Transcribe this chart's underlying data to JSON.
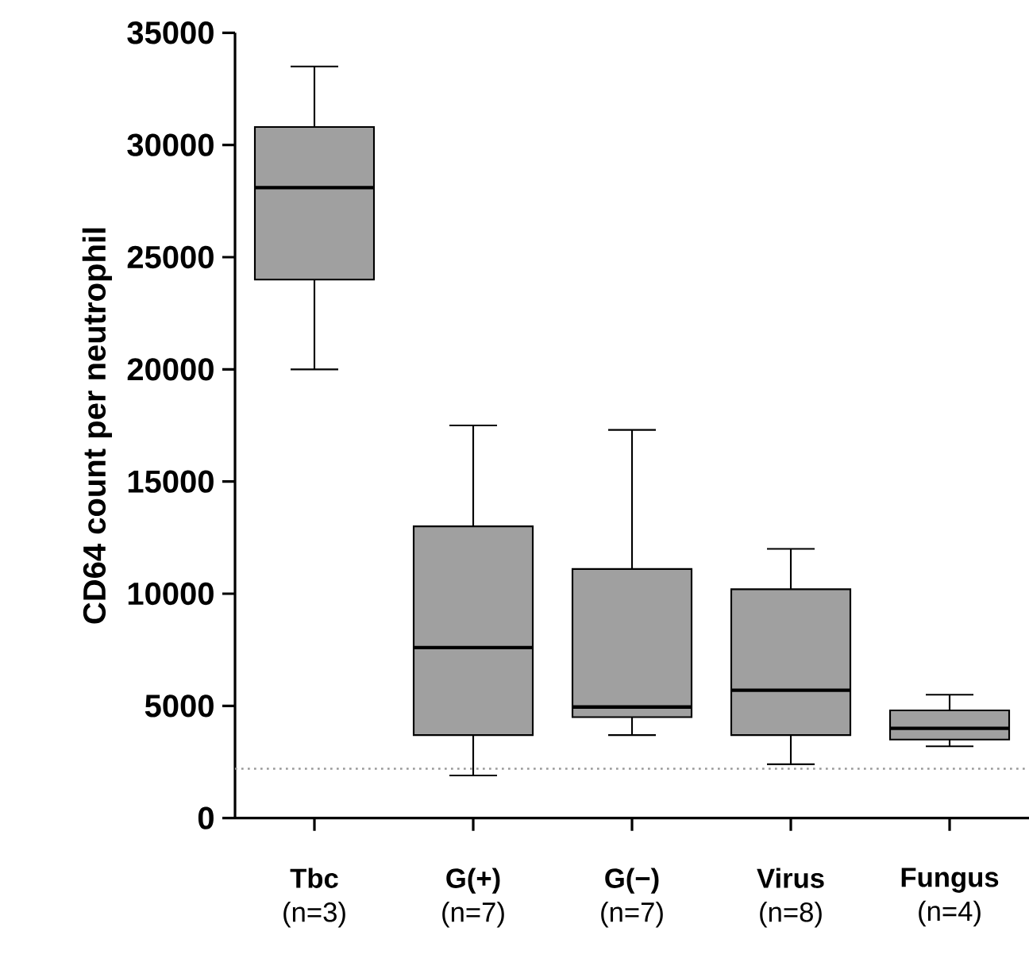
{
  "chart_data": {
    "type": "box",
    "ylabel": "CD64 count per neutrophil",
    "categories": [
      "**Tbc** (n=3)",
      "**G(+)** (n=7)",
      "**G(−)** (n=7)",
      "**Virus** (n=8)",
      "**Fungus** (n=4)"
    ],
    "series": [
      {
        "color": "#a0a0a0",
        "boxes": [
          {
            "low": 20000,
            "q1": 24000,
            "median": 28100,
            "q3": 30800,
            "high": 33500
          },
          {
            "low": 1900,
            "q1": 3700,
            "median": 7600,
            "q3": 13000,
            "high": 17500
          },
          {
            "low": 3700,
            "q1": 4500,
            "median": 4950,
            "q3": 11100,
            "high": 17300
          },
          {
            "low": 2400,
            "q1": 3700,
            "median": 5700,
            "q3": 10200,
            "high": 12000
          },
          {
            "low": 3200,
            "q1": 3500,
            "median": 4000,
            "q3": 4800,
            "high": 5500
          }
        ]
      }
    ],
    "ylim": [
      0,
      35000
    ],
    "yticks": [
      0,
      5000,
      10000,
      15000,
      20000,
      25000,
      30000,
      35000
    ],
    "ref_lines": [
      {
        "axis": "y",
        "value": 2200,
        "color": "#999999",
        "line_style": "dotted"
      }
    ]
  }
}
